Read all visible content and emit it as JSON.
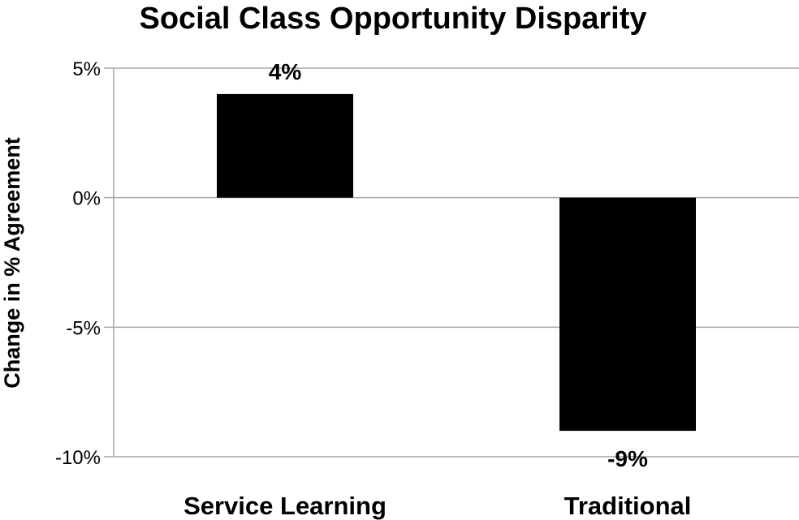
{
  "chart_data": {
    "type": "bar",
    "title": "Social Class Opportunity Disparity",
    "xlabel": "",
    "ylabel": "Change in % Agreement",
    "categories": [
      "Service Learning",
      "Traditional"
    ],
    "values": [
      4,
      -9
    ],
    "data_labels": [
      "4%",
      "-9%"
    ],
    "ylim": [
      -10,
      5
    ],
    "yticks": [
      5,
      0,
      -5,
      -10
    ],
    "ytick_labels": [
      "5%",
      "0%",
      "-5%",
      "-10%"
    ],
    "grid": true,
    "legend": "none",
    "bar_color": "#000000",
    "grid_color": "#a6a6a6"
  }
}
